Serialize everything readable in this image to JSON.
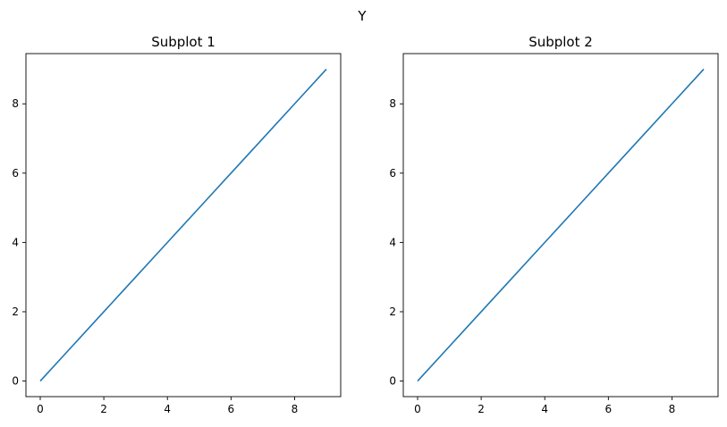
{
  "suptitle": "Y",
  "chart_data": [
    {
      "type": "line",
      "title": "Subplot 1",
      "xlabel": "",
      "ylabel": "",
      "xlim": [
        -0.45,
        9.45
      ],
      "ylim": [
        -0.45,
        9.45
      ],
      "xticks": [
        0,
        2,
        4,
        6,
        8
      ],
      "yticks": [
        0,
        2,
        4,
        6,
        8
      ],
      "grid": false,
      "series": [
        {
          "x": [
            0,
            1,
            2,
            3,
            4,
            5,
            6,
            7,
            8,
            9
          ],
          "y": [
            0,
            1,
            2,
            3,
            4,
            5,
            6,
            7,
            8,
            9
          ],
          "color": "#1f77b4"
        }
      ]
    },
    {
      "type": "line",
      "title": "Subplot 2",
      "xlabel": "",
      "ylabel": "",
      "xlim": [
        -0.45,
        9.45
      ],
      "ylim": [
        -0.45,
        9.45
      ],
      "xticks": [
        0,
        2,
        4,
        6,
        8
      ],
      "yticks": [
        0,
        2,
        4,
        6,
        8
      ],
      "grid": false,
      "series": [
        {
          "x": [
            0,
            1,
            2,
            3,
            4,
            5,
            6,
            7,
            8,
            9
          ],
          "y": [
            0,
            1,
            2,
            3,
            4,
            5,
            6,
            7,
            8,
            9
          ],
          "color": "#1f77b4"
        }
      ]
    }
  ]
}
